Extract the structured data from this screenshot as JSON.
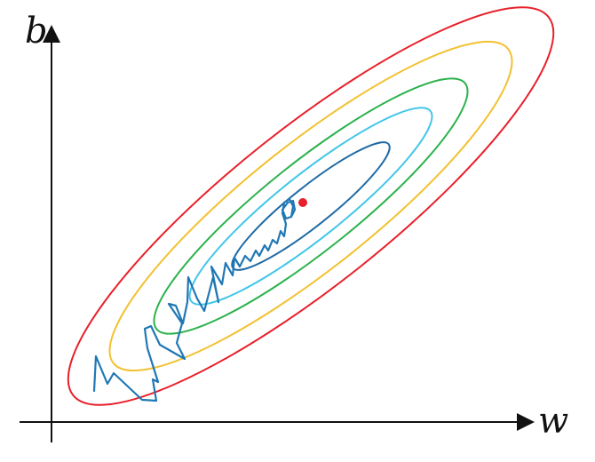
{
  "axes": {
    "x_label": "w",
    "y_label": "b"
  },
  "contours": [
    {
      "color": "#e8202a"
    },
    {
      "color": "#f2c131"
    },
    {
      "color": "#2bb24c"
    },
    {
      "color": "#44c6e8"
    },
    {
      "color": "#1f6aa5"
    }
  ],
  "path_color": "#1f78b4",
  "minimum_color": "#e8202a"
}
